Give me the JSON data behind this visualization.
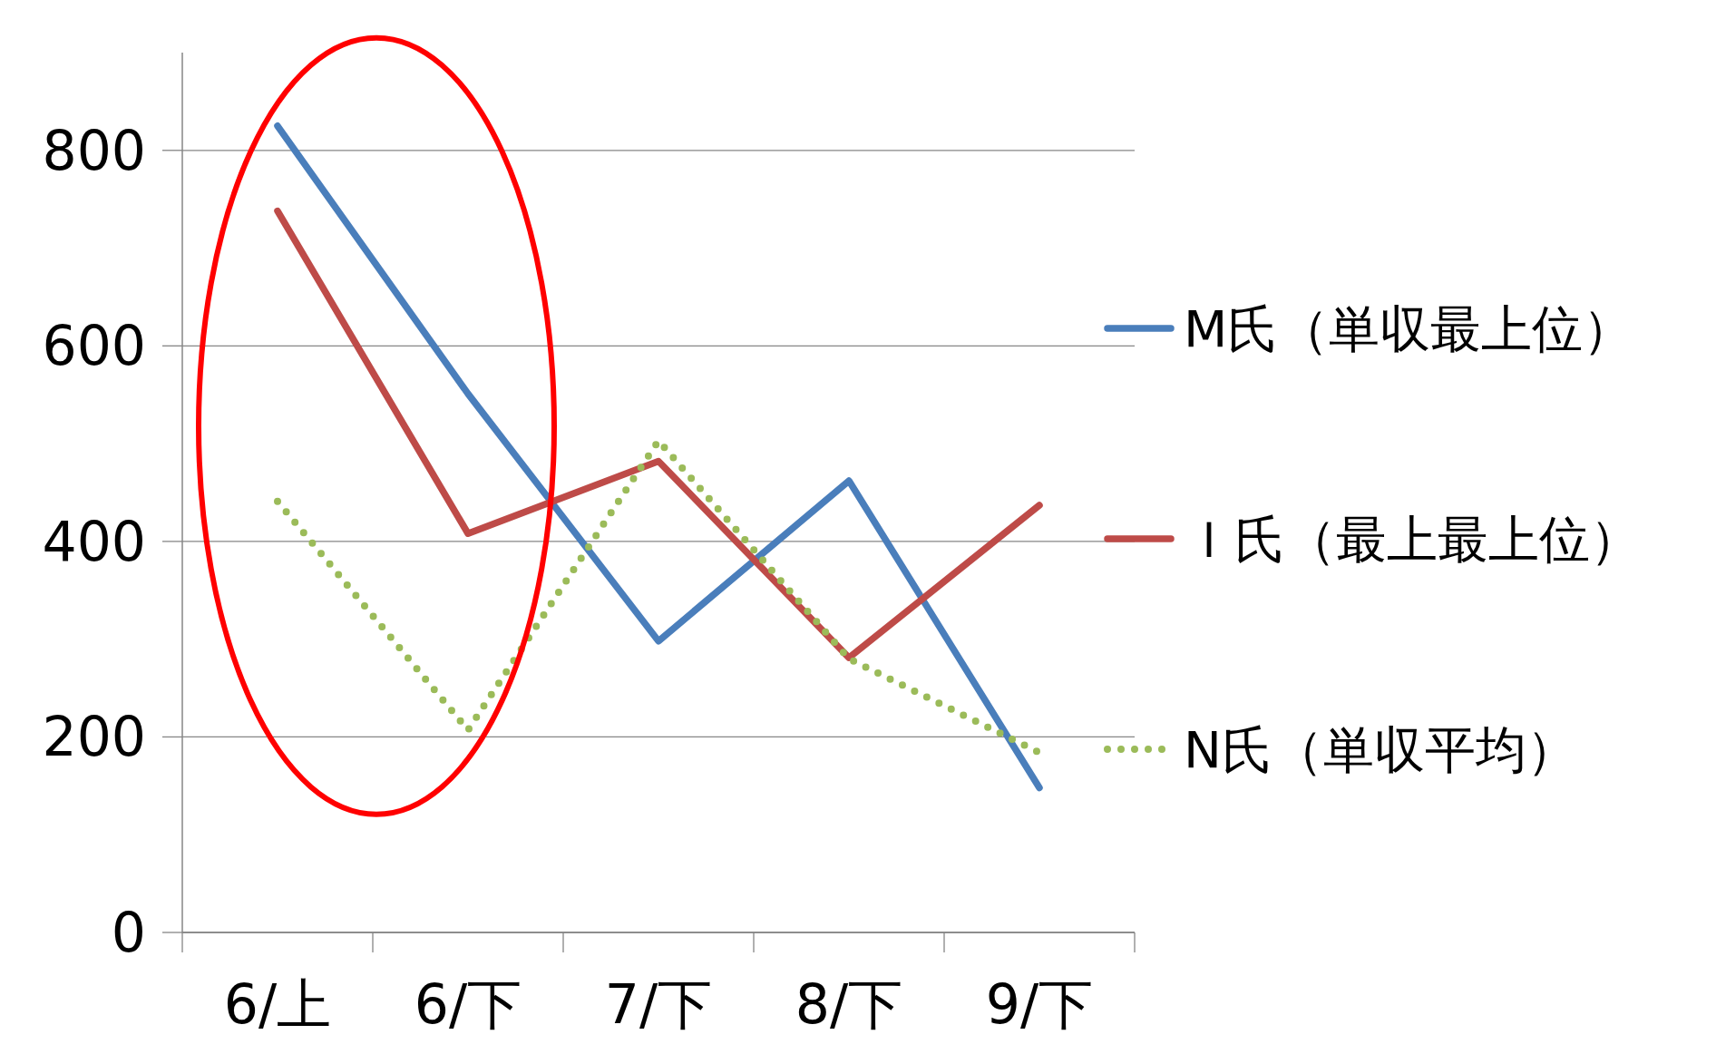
{
  "chart_data": {
    "type": "line",
    "categories": [
      "6/上",
      "6/下",
      "7/下",
      "8/下",
      "9/下"
    ],
    "series": [
      {
        "name": "M氏（単収最上位）",
        "color": "#4a7ebb",
        "values": [
          825,
          551,
          298,
          462,
          148
        ]
      },
      {
        "name": "Ｉ氏（最上最上位）",
        "color": "#be4b48",
        "values": [
          738,
          408,
          482,
          281,
          437
        ]
      },
      {
        "name": "N氏（単収平均）",
        "color": "#9bbb59",
        "line_style": "dotted",
        "values": [
          441,
          207,
          503,
          280,
          184
        ]
      }
    ],
    "ylim": [
      0,
      900
    ],
    "yticks": [
      0,
      200,
      400,
      600,
      800
    ],
    "grid": "y",
    "legend": "right",
    "marker": "none"
  }
}
